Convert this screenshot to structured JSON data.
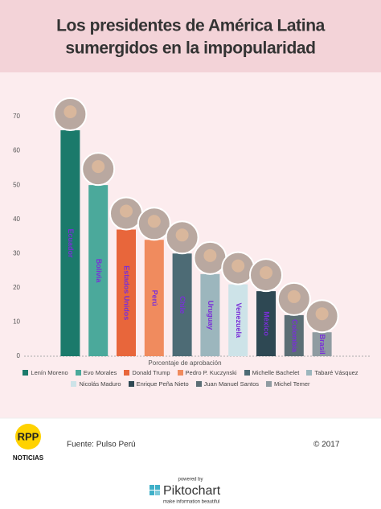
{
  "chart_data": {
    "type": "bar",
    "title": [
      "Los presidentes de América Latina",
      "sumergidos en la impopularidad"
    ],
    "categories": [
      "Ecuador",
      "Bolivia",
      "Estados Unidos",
      "Perú",
      "Chile",
      "Uruguay",
      "Venezuela",
      "México",
      "Colombia",
      "Brasil"
    ],
    "values": [
      66,
      50,
      37,
      34,
      30,
      24,
      21,
      19,
      12,
      7
    ],
    "leaders": [
      "Lenín Moreno",
      "Evo Morales",
      "Donald Trump",
      "Pedro P. Kuczynski",
      "Michelle Bachelet",
      "Tabaré Vásquez",
      "Nicolás Maduro",
      "Enrique Peña Nieto",
      "Juan Manuel Santos",
      "Michel Temer"
    ],
    "colors": [
      "#1b7a6b",
      "#4ba99b",
      "#e8663b",
      "#f08b5e",
      "#4d6b75",
      "#9cb6bd",
      "#cde3e8",
      "#2e4853",
      "#5b6e75",
      "#8f9ba1"
    ],
    "ylim": [
      0,
      70
    ],
    "yticks": [
      0,
      10,
      20,
      30,
      40,
      50,
      60,
      70
    ],
    "grid": false,
    "x_label": "Porcentaje de aprobación"
  },
  "footer": {
    "logo": [
      "RPP",
      "NOTICIAS"
    ],
    "source": "Fuente: Pulso Perú",
    "copyright": "© 2017",
    "powered_by": "powered by",
    "brand": "Piktochart",
    "tagline": "make information beautiful"
  }
}
